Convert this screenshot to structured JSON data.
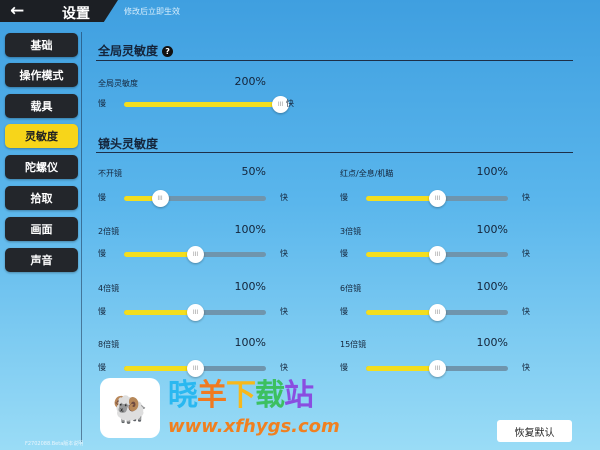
{
  "header": {
    "back_icon": "arrow-left",
    "title": "设置",
    "hint": "修改后立即生效"
  },
  "sidebar": {
    "items": [
      {
        "label": "基础"
      },
      {
        "label": "操作模式"
      },
      {
        "label": "载具"
      },
      {
        "label": "灵敏度",
        "active": true
      },
      {
        "label": "陀螺仪"
      },
      {
        "label": "拾取"
      },
      {
        "label": "画面"
      },
      {
        "label": "声音"
      }
    ]
  },
  "colors": {
    "accent": "#f7d51a",
    "nav_bg": "#23262b",
    "track": "#6f95ad"
  },
  "global": {
    "title": "全局灵敏度",
    "help_icon": "?",
    "label": "全局灵敏度",
    "value": "200%",
    "fraction": 1.0,
    "slow": "慢",
    "fast": "快"
  },
  "scope": {
    "title": "镜头灵敏度",
    "slow": "慢",
    "fast": "快",
    "items": [
      {
        "label": "不开镜",
        "value": "50%",
        "fraction": 0.25
      },
      {
        "label": "红点/全息/机瞄",
        "value": "100%",
        "fraction": 0.5
      },
      {
        "label": "2倍镜",
        "value": "100%",
        "fraction": 0.5
      },
      {
        "label": "3倍镜",
        "value": "100%",
        "fraction": 0.5
      },
      {
        "label": "4倍镜",
        "value": "100%",
        "fraction": 0.5
      },
      {
        "label": "6倍镜",
        "value": "100%",
        "fraction": 0.5
      },
      {
        "label": "8倍镜",
        "value": "100%",
        "fraction": 0.5
      },
      {
        "label": "15倍镜",
        "value": "100%",
        "fraction": 0.5
      }
    ]
  },
  "footer": {
    "restore_label": "恢复默认",
    "version": "F2702088.Beta版本说明"
  },
  "watermark": {
    "name": "晓羊下载站",
    "url": "www.xfhygs.com"
  }
}
